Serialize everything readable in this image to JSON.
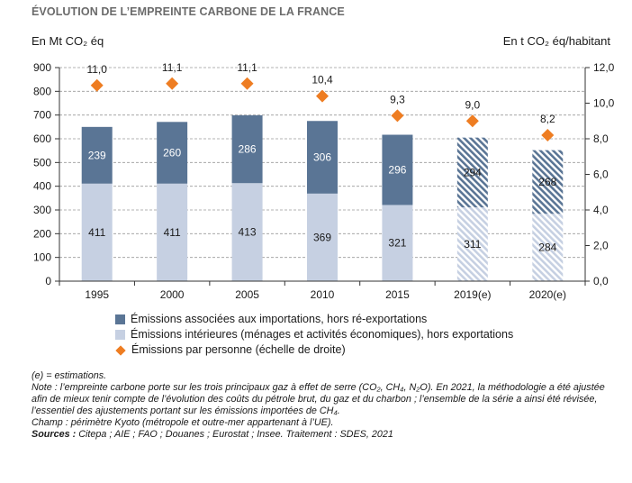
{
  "title": "ÉVOLUTION DE L’EMPREINTE CARBONE DE LA FRANCE",
  "unit_left": "En Mt CO₂ éq",
  "unit_right": "En t CO₂ éq/habitant",
  "chart_data": {
    "type": "bar",
    "stacked": true,
    "categories": [
      "1995",
      "2000",
      "2005",
      "2010",
      "2015",
      "2019(e)",
      "2020(e)"
    ],
    "estimated": [
      false,
      false,
      false,
      false,
      false,
      true,
      true
    ],
    "series": [
      {
        "name": "Émissions intérieures (ménages et activités économiques), hors exportations",
        "values": [
          411,
          411,
          413,
          369,
          321,
          311,
          284
        ],
        "color": "#c6d0e2"
      },
      {
        "name": "Émissions associées aux importations, hors ré-exportations",
        "values": [
          239,
          260,
          286,
          306,
          296,
          294,
          268
        ],
        "color": "#5a7595"
      }
    ],
    "line_series": {
      "name": "Émissions par personne (échelle de droite)",
      "values": [
        11.0,
        11.1,
        11.1,
        10.4,
        9.3,
        9.0,
        8.2
      ],
      "labels": [
        "11,0",
        "11,1",
        "11,1",
        "10,4",
        "9,3",
        "9,0",
        "8,2"
      ],
      "color": "#ee7d22",
      "marker": "diamond"
    },
    "y_left": {
      "min": 0,
      "max": 900,
      "ticks": [
        "0",
        "100",
        "200",
        "300",
        "400",
        "500",
        "600",
        "700",
        "800",
        "900"
      ]
    },
    "y_right": {
      "min": 0,
      "max": 12,
      "ticks": [
        "0,0",
        "2,0",
        "4,0",
        "6,0",
        "8,0",
        "10,0",
        "12,0"
      ]
    },
    "grid": true,
    "legend_position": "bottom"
  },
  "legend": [
    {
      "label": "Émissions associées aux importations, hors ré-exportations",
      "kind": "import"
    },
    {
      "label": "Émissions intérieures (ménages et activités économiques), hors exportations",
      "kind": "domestic"
    },
    {
      "label": "Émissions par personne (échelle de droite)",
      "kind": "per-capita"
    }
  ],
  "notes": {
    "estimations": "(e) = estimations.",
    "note": "Note : l’empreinte carbone porte sur les trois principaux gaz à effet de serre (CO₂, CH₄, N₂O). En 2021, la méthodologie a été ajustée afin de mieux tenir compte de l’évolution des coûts du pétrole brut, du gaz et du charbon ; l’ensemble de la série a ainsi été révisée, l’essentiel des ajustements portant sur les émissions importées de CH₄.",
    "champ": "Champ : périmètre Kyoto (métropole et outre-mer appartenant à l’UE).",
    "sources_label": "Sources :",
    "sources_text": " Citepa ; AIE ; FAO ; Douanes ; Eurostat ; Insee. Traitement : SDES, 2021"
  }
}
